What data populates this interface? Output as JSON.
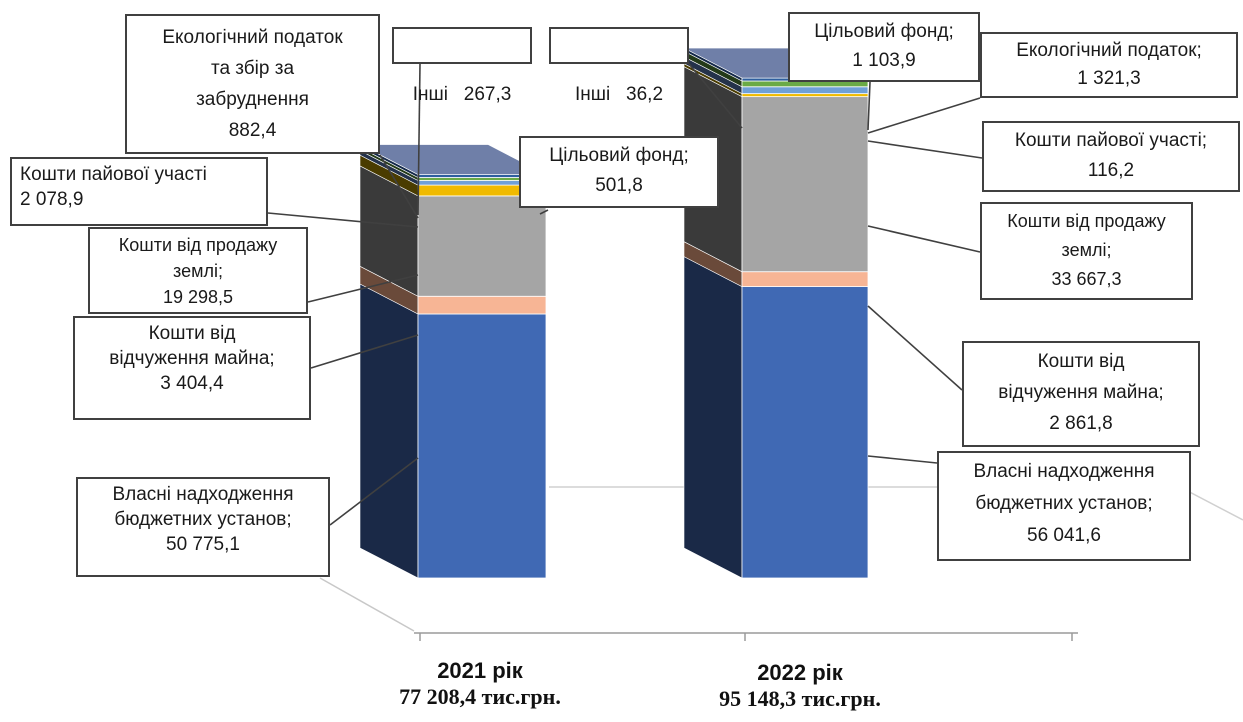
{
  "chart_data": {
    "type": "bar",
    "stacked": true,
    "style": "3d",
    "categories": [
      "2021 рік",
      "2022 рік"
    ],
    "totals": [
      "77 208,4 тис.грн.",
      "95 148,3 тис.грн."
    ],
    "series": [
      {
        "name": "Власні надходження бюджетних установ",
        "values": [
          50775.1,
          56041.6
        ],
        "labels": [
          "50 775,1",
          "56 041,6"
        ],
        "color": "#4069b4",
        "side": "#1a2947"
      },
      {
        "name": "Кошти від відчуження майна",
        "values": [
          3404.4,
          2861.8
        ],
        "labels": [
          "3 404,4",
          "2 861,8"
        ],
        "color": "#f7b595",
        "side": "#6a4a3a"
      },
      {
        "name": "Кошти від продажу землі",
        "values": [
          19298.5,
          33667.3
        ],
        "labels": [
          "19 298,5",
          "33 667,3"
        ],
        "color": "#a5a5a5",
        "side": "#3a3a3a"
      },
      {
        "name": "Кошти пайової участі",
        "values": [
          2078.9,
          116.2
        ],
        "labels": [
          "2 078,9",
          "116,2"
        ],
        "color": "#f0ba00",
        "side": "#4a3c00"
      },
      {
        "name": "Екологічний податок",
        "values": [
          882.4,
          1321.3
        ],
        "labels": [
          "882,4",
          "1 321,3"
        ],
        "color": "#6fa0d8",
        "side": "#24324a"
      },
      {
        "name": "Цільовий фонд",
        "values": [
          501.8,
          1103.9
        ],
        "labels": [
          "501,8",
          "1 103,9"
        ],
        "color": "#6aaa46",
        "side": "#233a18"
      },
      {
        "name": "Інші",
        "values": [
          267.3,
          36.2
        ],
        "labels": [
          "267,3",
          "36,2"
        ],
        "color": "#2e5f9e",
        "side": "#14294a"
      }
    ],
    "top_color": "#6f7fa8"
  },
  "callouts": {
    "c2021": {
      "vlasni": [
        "Власні надходження",
        "бюджетних установ;",
        "50 775,1"
      ],
      "vidch": [
        "Кошти від",
        "відчуження майна;",
        "3 404,4"
      ],
      "zemli": [
        "Кошти від продажу",
        "землі;",
        "19 298,5"
      ],
      "payova": [
        "Кошти пайової участі",
        "2 078,9"
      ],
      "eko": [
        "Екологічний податок",
        "та збір за",
        "забруднення",
        "882,4"
      ],
      "inshi": [
        "Інші   267,3"
      ],
      "cilovyi": [
        "Цільовий фонд;",
        "501,8"
      ]
    },
    "c2022": {
      "inshi": [
        "Інші   36,2"
      ],
      "cilovyi": [
        "Цільовий фонд;",
        "1 103,9"
      ],
      "eko": [
        "Екологічний податок;",
        "1 321,3"
      ],
      "payova": [
        "Кошти пайової участі;",
        "116,2"
      ],
      "zemli": [
        "Кошти від продажу",
        "землі;",
        "33 667,3"
      ],
      "vidch": [
        "Кошти від",
        "відчуження майна;",
        "2 861,8"
      ],
      "vlasni": [
        "Власні надходження",
        "бюджетних установ;",
        "56 041,6"
      ]
    }
  }
}
